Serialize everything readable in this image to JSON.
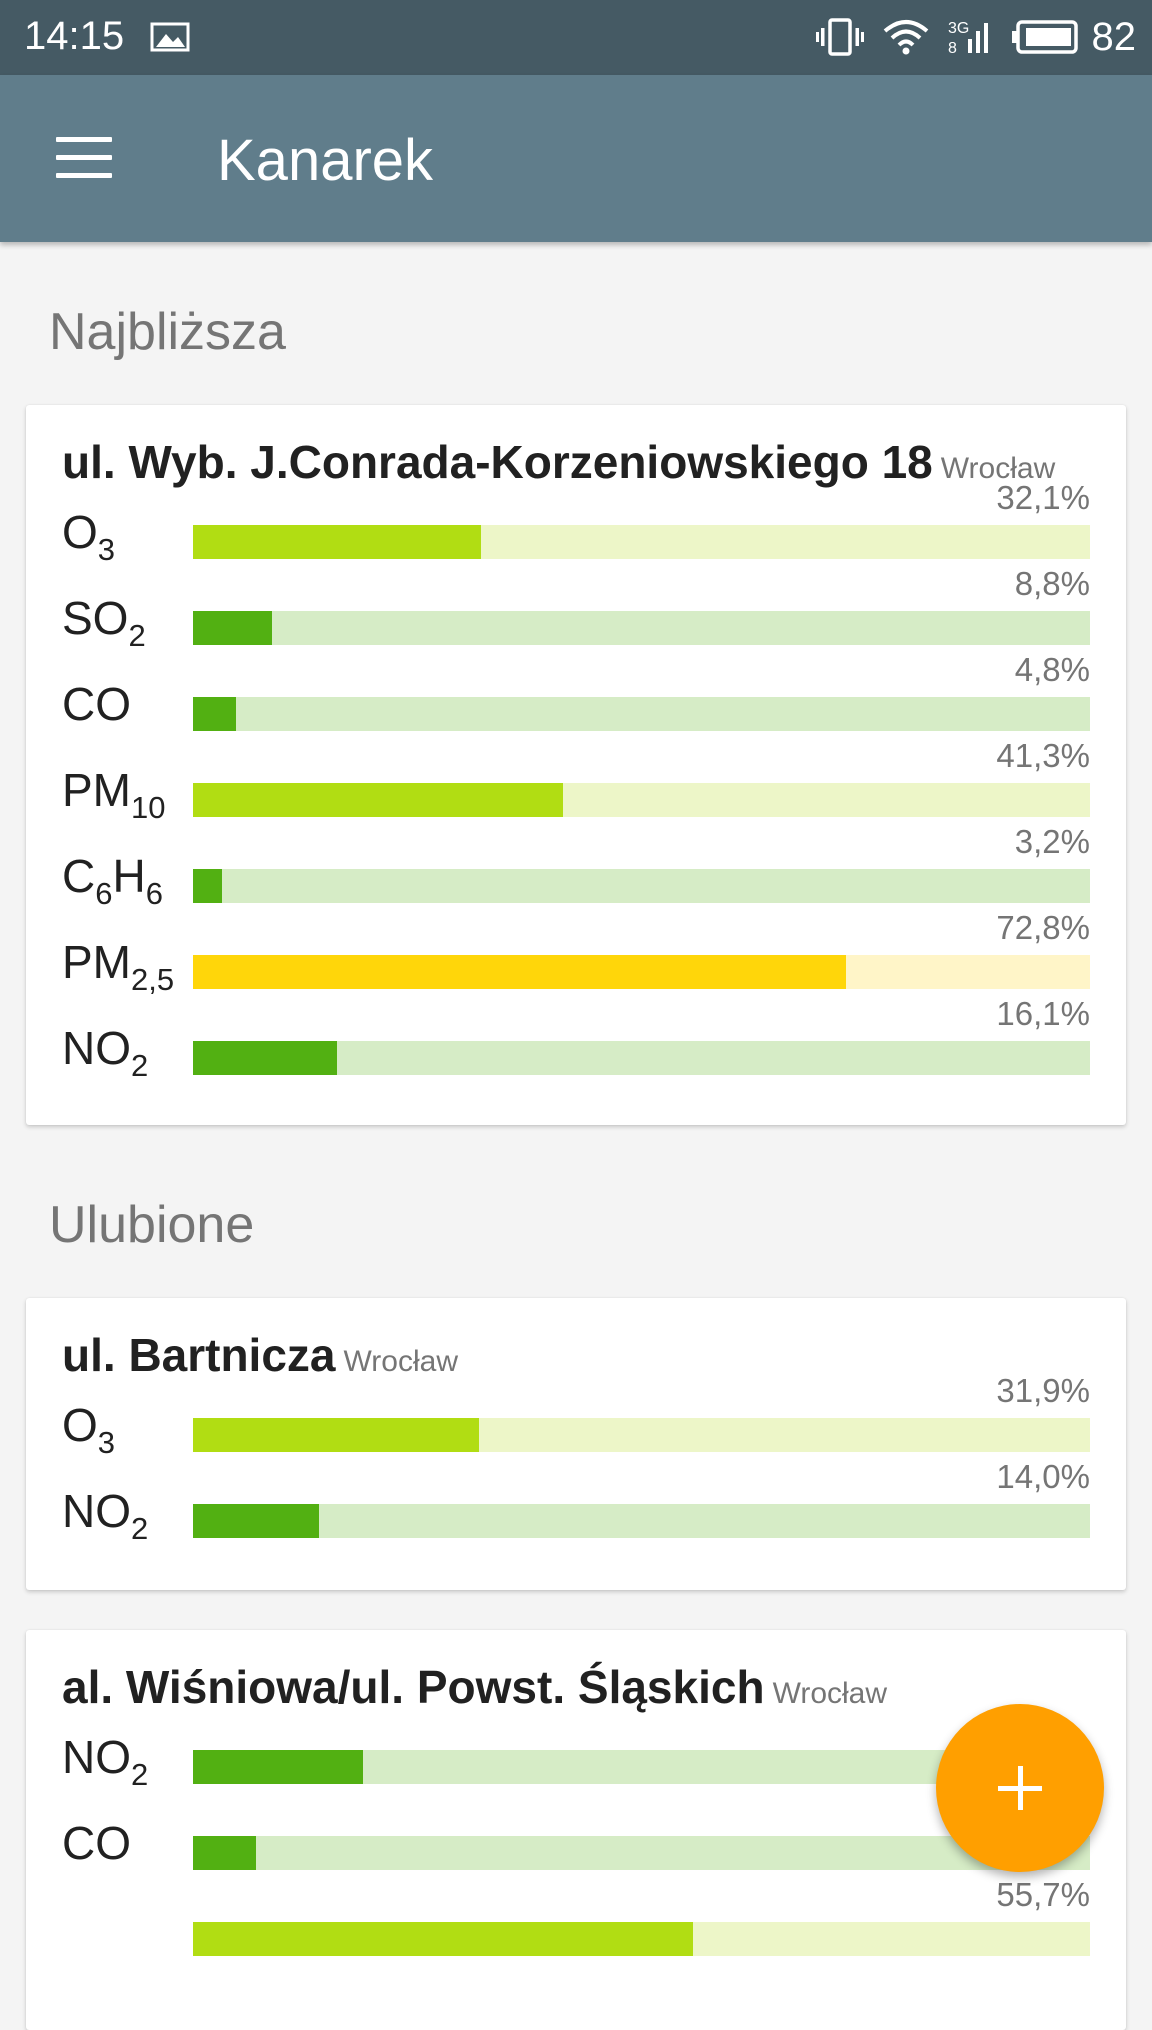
{
  "status_bar": {
    "time": "14:15",
    "battery": "82",
    "icons": [
      "image-icon",
      "vibrate-icon",
      "wifi-icon",
      "signal-3g-icon",
      "battery-icon"
    ]
  },
  "app_bar": {
    "title": "Kanarek",
    "menu_icon": "hamburger-menu-icon"
  },
  "sections": {
    "nearest": "Najbliższa",
    "favorites": "Ulubione"
  },
  "level_colors": {
    "good": {
      "fill": "#52b012",
      "track": "#d6ecc6"
    },
    "moderate": {
      "fill": "#b1dd13",
      "track": "#edf6c8"
    },
    "elevated": {
      "fill": "#ffd60a",
      "track": "#fff5c8"
    }
  },
  "stations": [
    {
      "name": "ul. Wyb. J.Conrada-Korzeniowskiego 18",
      "city": "Wrocław",
      "readings": [
        {
          "base": "O",
          "sub": "3",
          "base2": "",
          "sub2": "",
          "pct": "32,1%",
          "value": 32.1,
          "level": "moderate"
        },
        {
          "base": "SO",
          "sub": "2",
          "base2": "",
          "sub2": "",
          "pct": "8,8%",
          "value": 8.8,
          "level": "good"
        },
        {
          "base": "CO",
          "sub": "",
          "base2": "",
          "sub2": "",
          "pct": "4,8%",
          "value": 4.8,
          "level": "good"
        },
        {
          "base": "PM",
          "sub": "10",
          "base2": "",
          "sub2": "",
          "pct": "41,3%",
          "value": 41.3,
          "level": "moderate"
        },
        {
          "base": "C",
          "sub": "6",
          "base2": "H",
          "sub2": "6",
          "pct": "3,2%",
          "value": 3.2,
          "level": "good"
        },
        {
          "base": "PM",
          "sub": "2,5",
          "base2": "",
          "sub2": "",
          "pct": "72,8%",
          "value": 72.8,
          "level": "elevated"
        },
        {
          "base": "NO",
          "sub": "2",
          "base2": "",
          "sub2": "",
          "pct": "16,1%",
          "value": 16.1,
          "level": "good"
        }
      ]
    },
    {
      "name": "ul. Bartnicza",
      "city": "Wrocław",
      "readings": [
        {
          "base": "O",
          "sub": "3",
          "base2": "",
          "sub2": "",
          "pct": "31,9%",
          "value": 31.9,
          "level": "moderate"
        },
        {
          "base": "NO",
          "sub": "2",
          "base2": "",
          "sub2": "",
          "pct": "14,0%",
          "value": 14.0,
          "level": "good"
        }
      ]
    },
    {
      "name": "al. Wiśniowa/ul. Powst. Śląskich",
      "city": "Wrocław",
      "readings": [
        {
          "base": "NO",
          "sub": "2",
          "base2": "",
          "sub2": "",
          "pct": "",
          "value": 19.0,
          "level": "good"
        },
        {
          "base": "CO",
          "sub": "",
          "base2": "",
          "sub2": "",
          "pct": "",
          "value": 7.0,
          "level": "good"
        },
        {
          "base": "",
          "sub": "",
          "base2": "",
          "sub2": "",
          "pct": "55,7%",
          "value": 55.7,
          "level": "moderate"
        }
      ]
    }
  ],
  "fab": {
    "icon": "plus-icon"
  }
}
